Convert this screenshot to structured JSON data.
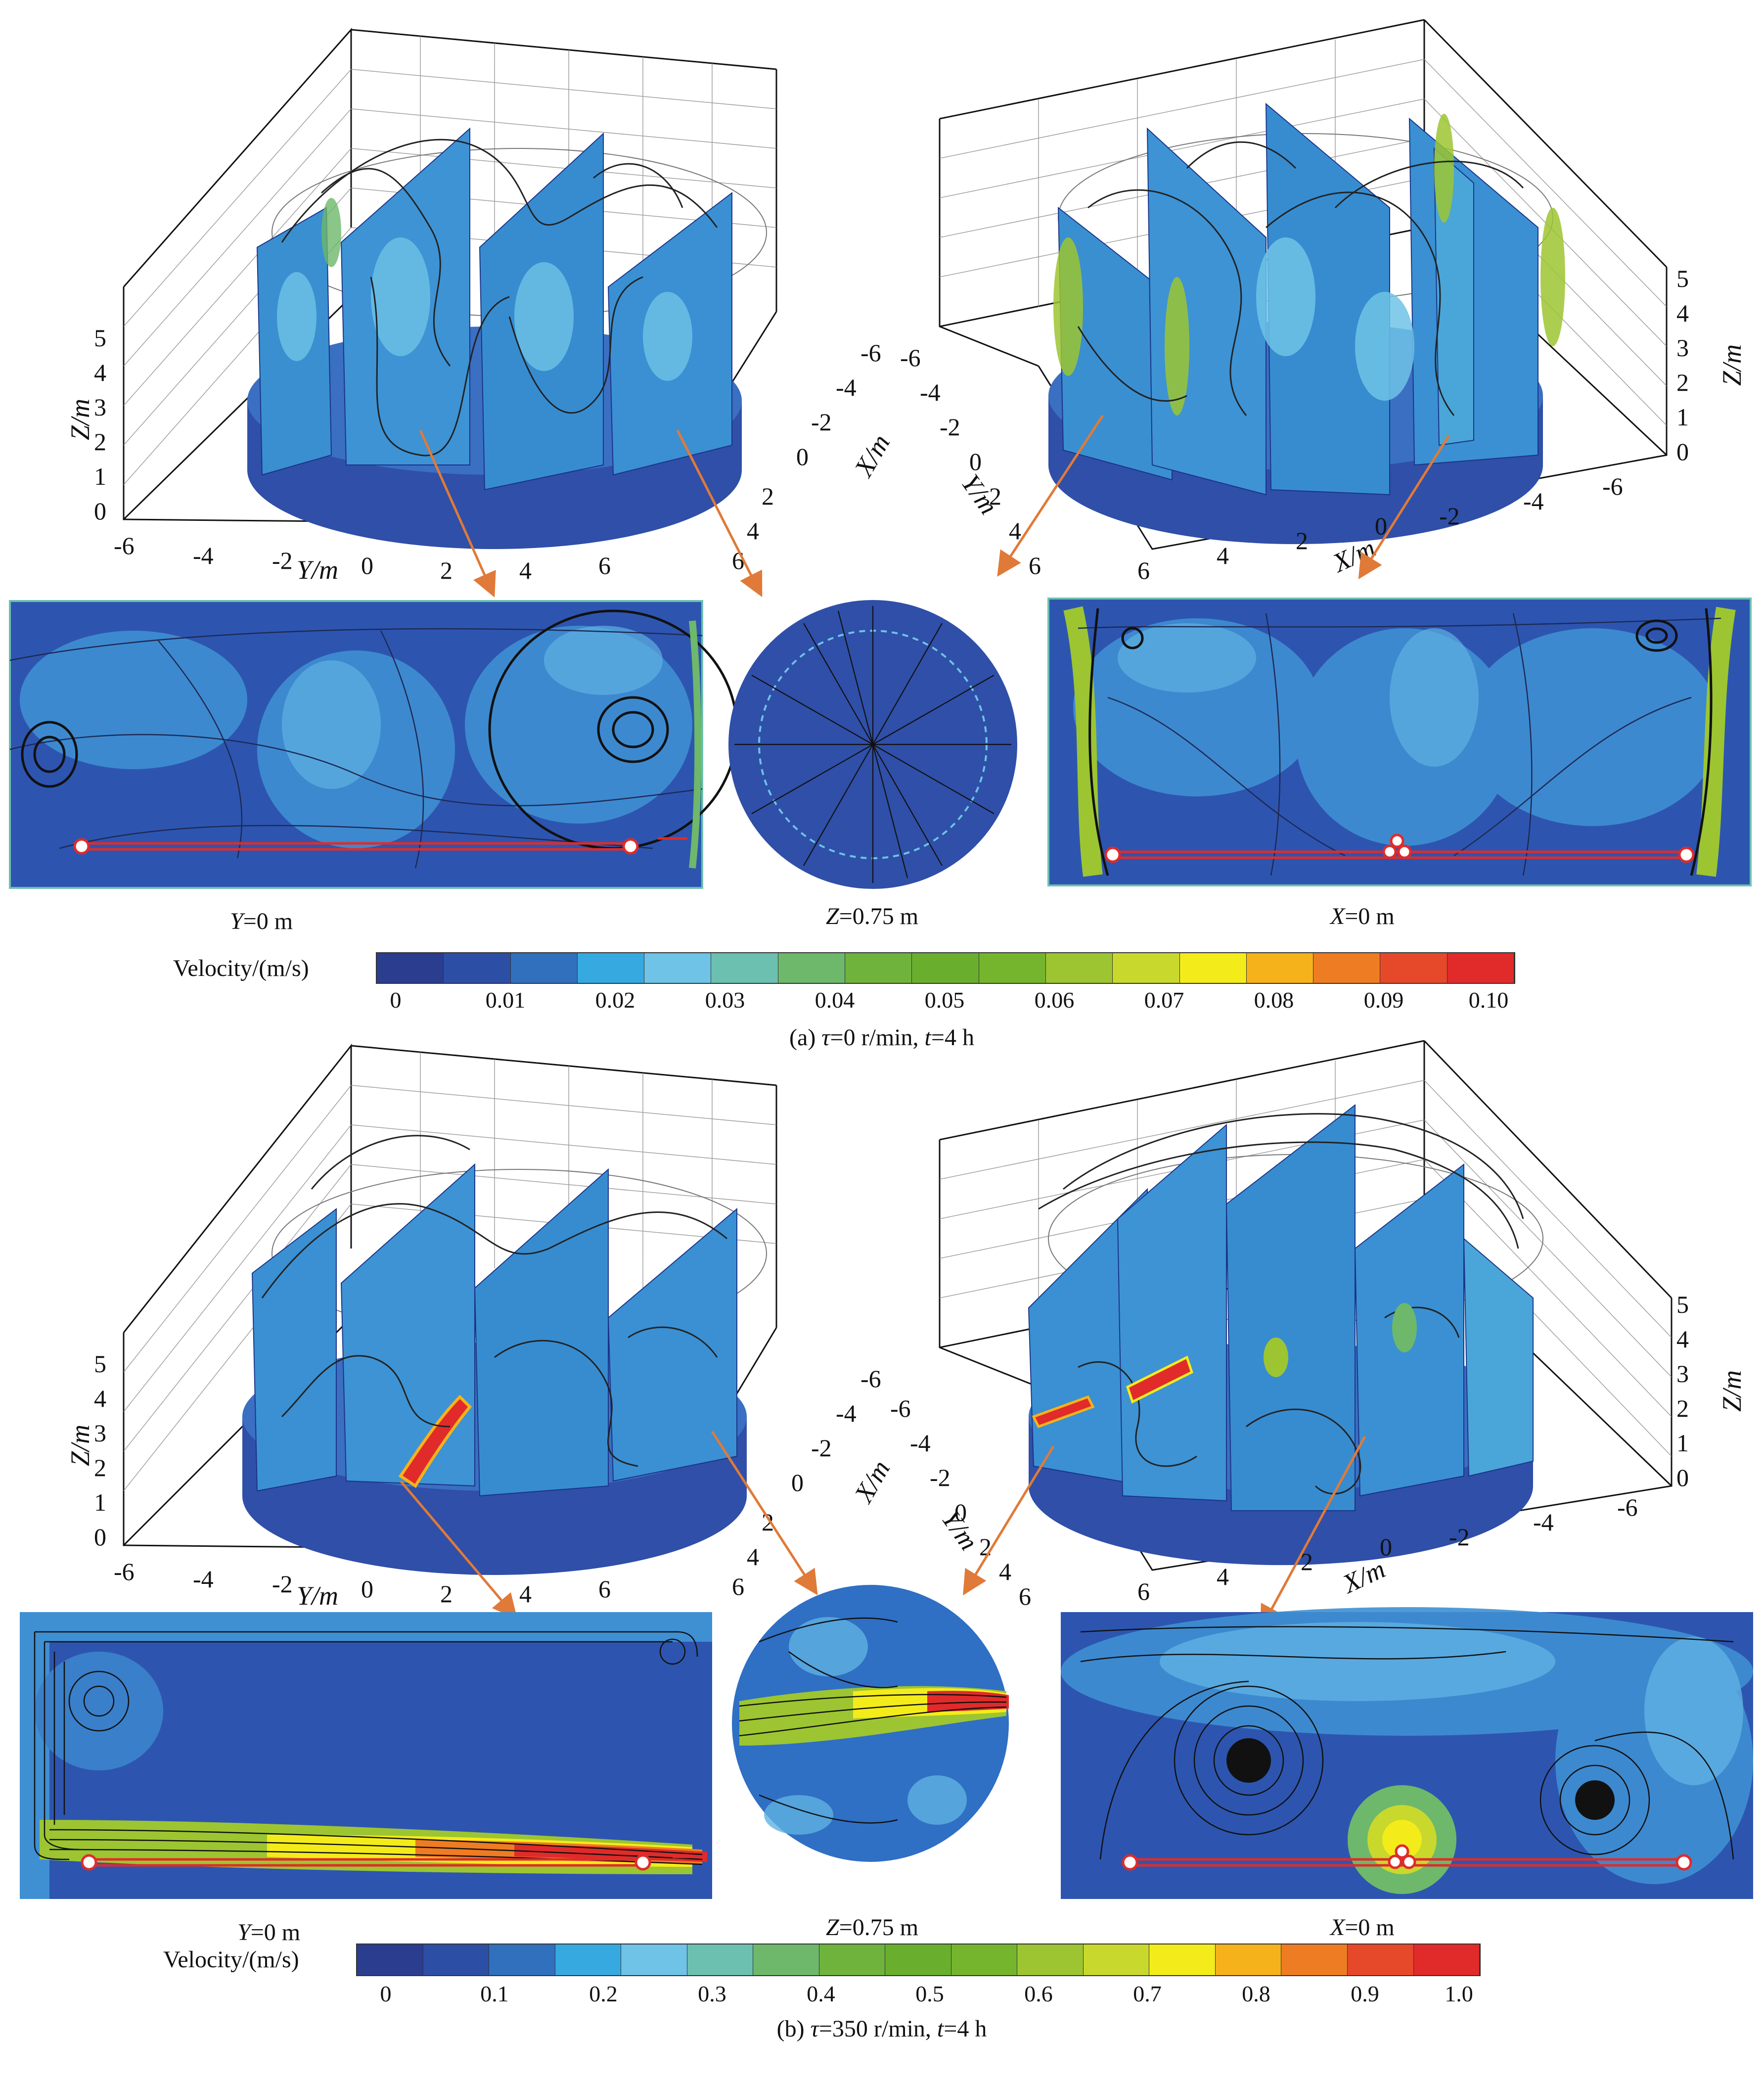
{
  "panels": [
    {
      "id": "a",
      "caption": {
        "prefix": "(a) ",
        "tau": "τ",
        "tau_value": "=0 r/min, ",
        "t": "t",
        "t_value": "=4 h"
      },
      "colorbar_title": "Velocity/(m/s)",
      "colorbar_ticks": [
        "0",
        "0.01",
        "0.02",
        "0.03",
        "0.04",
        "0.05",
        "0.06",
        "0.07",
        "0.08",
        "0.09",
        "0.10"
      ],
      "sections": [
        {
          "var": "Y",
          "value": "=0 m"
        },
        {
          "var": "Z",
          "value": "=0.75 m"
        },
        {
          "var": "X",
          "value": "=0 m"
        }
      ],
      "axes3d": {
        "z_label": "Z/m",
        "x_label": "X/m",
        "y_label": "Y/m",
        "z_ticks": [
          "0",
          "1",
          "2",
          "3",
          "4",
          "5"
        ],
        "y_ticks": [
          "-6",
          "-4",
          "-2",
          "0",
          "2",
          "4",
          "6"
        ],
        "x_ticks": [
          "-6",
          "-4",
          "-2",
          "0",
          "2",
          "4",
          "6"
        ]
      }
    },
    {
      "id": "b",
      "caption": {
        "prefix": "(b) ",
        "tau": "τ",
        "tau_value": "=350 r/min, ",
        "t": "t",
        "t_value": "=4 h"
      },
      "colorbar_title": "Velocity/(m/s)",
      "colorbar_ticks": [
        "0",
        "0.1",
        "0.2",
        "0.3",
        "0.4",
        "0.5",
        "0.6",
        "0.7",
        "0.8",
        "0.9",
        "1.0"
      ],
      "sections": [
        {
          "var": "Y",
          "value": "=0 m"
        },
        {
          "var": "Z",
          "value": "=0.75 m"
        },
        {
          "var": "X",
          "value": "=0 m"
        }
      ],
      "axes3d": {
        "z_label": "Z/m",
        "x_label": "X/m",
        "y_label": "Y/m",
        "z_ticks": [
          "0",
          "1",
          "2",
          "3",
          "4",
          "5"
        ],
        "y_ticks": [
          "-6",
          "-4",
          "-2",
          "0",
          "2",
          "4",
          "6"
        ],
        "x_ticks": [
          "-6",
          "-4",
          "-2",
          "0",
          "2",
          "4",
          "6"
        ]
      }
    }
  ],
  "colors": {
    "colormap": [
      "#2a3d8f",
      "#2d4ea5",
      "#3070bd",
      "#36a9e0",
      "#6ec3e6",
      "#6cc0b0",
      "#6db86b",
      "#6fb23c",
      "#6aae2e",
      "#74b52d",
      "#9cc531",
      "#c8d82c",
      "#f4ec1a",
      "#f6b21b",
      "#ee7c22",
      "#e6482a",
      "#e02b2a"
    ],
    "arrow": "#e07a38",
    "aerator": "#e02b2a",
    "fluid_base": "#2f4fa8",
    "fluid_mid": "#2f84c8"
  }
}
